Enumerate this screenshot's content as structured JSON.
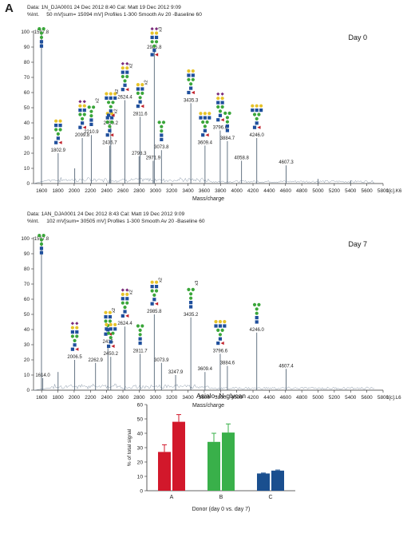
{
  "panel_label": "A",
  "spectra": [
    {
      "id": "day0",
      "header_line1": "Data: 1N_DJA0001 24 Dec 2012 8:40 Cal: Matt 19 Dec 2012 9:09",
      "header_line2_prefix": "%Int.",
      "header_line2_rest": "50 mV[sum= 15094 mV]  Profiles 1-300  Smooth Av 20 -Baseline 60",
      "day_label": "Day 0",
      "corner_label": "1[c].K6",
      "xlabel": "Mass/charge",
      "xlim": [
        1500,
        5800
      ],
      "ylim": [
        0,
        100
      ],
      "peaks": [
        {
          "mz": 1597.8,
          "label": "1597.8",
          "int": 98
        },
        {
          "mz": 1802.9,
          "label": "1802.9",
          "int": 20
        },
        {
          "mz": 2006.8,
          "label": "",
          "int": 10
        },
        {
          "mz": 2099.8,
          "label": "2099.8",
          "int": 30
        },
        {
          "mz": 2210.9,
          "label": "2210.9",
          "int": 32
        },
        {
          "mz": 2436.7,
          "label": "2436.7",
          "int": 25
        },
        {
          "mz": 2450.2,
          "label": "2450.2",
          "int": 38
        },
        {
          "mz": 2624.4,
          "label": "2624.4",
          "int": 55
        },
        {
          "mz": 2798.3,
          "label": "2798.3",
          "int": 18
        },
        {
          "mz": 2811.6,
          "label": "2811.6",
          "int": 44
        },
        {
          "mz": 2971.9,
          "label": "2971.9",
          "int": 15
        },
        {
          "mz": 2985.8,
          "label": "2985.8",
          "int": 88
        },
        {
          "mz": 3073.8,
          "label": "3073.8",
          "int": 22
        },
        {
          "mz": 3435.3,
          "label": "3435.3",
          "int": 53
        },
        {
          "mz": 3609.4,
          "label": "3609.4",
          "int": 25
        },
        {
          "mz": 3796.6,
          "label": "3796.6",
          "int": 35
        },
        {
          "mz": 3884.7,
          "label": "3884.7",
          "int": 28
        },
        {
          "mz": 4058.8,
          "label": "4058.8",
          "int": 15
        },
        {
          "mz": 4246.0,
          "label": "4246.0",
          "int": 30
        },
        {
          "mz": 4607.3,
          "label": "4607.3",
          "int": 12
        },
        {
          "mz": 5000,
          "label": "",
          "int": 3
        },
        {
          "mz": 5400,
          "label": "",
          "int": 2
        }
      ],
      "annotations": [
        "x2",
        "x2",
        "x2",
        "x2",
        "x2",
        "x3"
      ]
    },
    {
      "id": "day7",
      "header_line1": "Data: 1AN_DJA0001 24 Dec 2012 8:43 Cal: Matt 19 Dec 2012 9:09",
      "header_line2_prefix": "%Int.",
      "header_line2_rest": "102 mV[sum= 30505 mV]  Profiles 1-300  Smooth Av 20 -Baseline 60",
      "day_label": "Day 7",
      "corner_label": "1[c].L6",
      "xlabel": "Mass/charge",
      "xlim": [
        1500,
        5800
      ],
      "ylim": [
        0,
        100
      ],
      "peaks": [
        {
          "mz": 1597.8,
          "label": "1597.8",
          "int": 98
        },
        {
          "mz": 1614.0,
          "label": "1614.0",
          "int": 8
        },
        {
          "mz": 1802.0,
          "label": "",
          "int": 12
        },
        {
          "mz": 2006.5,
          "label": "2006.5",
          "int": 20
        },
        {
          "mz": 2262.9,
          "label": "2262.9",
          "int": 18
        },
        {
          "mz": 2415.0,
          "label": "2415",
          "int": 30
        },
        {
          "mz": 2450.2,
          "label": "2450.2",
          "int": 22
        },
        {
          "mz": 2624.4,
          "label": "2624.4",
          "int": 42
        },
        {
          "mz": 2811.7,
          "label": "2811.7",
          "int": 24
        },
        {
          "mz": 2985.8,
          "label": "2985.8",
          "int": 50
        },
        {
          "mz": 3073.9,
          "label": "3073.9",
          "int": 18
        },
        {
          "mz": 3247.9,
          "label": "3247.9",
          "int": 10
        },
        {
          "mz": 3435.2,
          "label": "3435.2",
          "int": 48
        },
        {
          "mz": 3609.4,
          "label": "3609.4",
          "int": 12
        },
        {
          "mz": 3796.6,
          "label": "3796.6",
          "int": 24
        },
        {
          "mz": 3884.6,
          "label": "3884.6",
          "int": 16
        },
        {
          "mz": 4246.0,
          "label": "4246.0",
          "int": 38
        },
        {
          "mz": 4607.4,
          "label": "4607.4",
          "int": 14
        }
      ],
      "annotations": [
        "x2",
        "x2",
        "x2",
        "x3"
      ]
    }
  ],
  "x_ticks": [
    "1600",
    "1800",
    "2000",
    "2200",
    "2400",
    "2600",
    "2800",
    "3000",
    "3200",
    "3400",
    "3600",
    "3800",
    "4000",
    "4200",
    "4400",
    "4600",
    "4800",
    "5000",
    "5200",
    "5400",
    "5600",
    "5800"
  ],
  "y_ticks": [
    "0",
    "10",
    "20",
    "30",
    "40",
    "50",
    "60",
    "70",
    "80",
    "90",
    "100"
  ],
  "glycan_colors": {
    "glcnac": "#1f4f9c",
    "mannose": "#3aa63a",
    "galactose": "#e6c229",
    "fucose": "#c0202a",
    "sialic": "#7a2a7a"
  },
  "chart_data": {
    "type": "bar",
    "title": "Asialo- N-glycan",
    "xlabel": "Donor (day 0 vs. day 7)",
    "ylabel": "% of total signal",
    "ylim": [
      0,
      60
    ],
    "y_ticks": [
      "0",
      "10",
      "20",
      "30",
      "40",
      "50",
      "60"
    ],
    "categories": [
      "A",
      "B",
      "C"
    ],
    "series": [
      {
        "values": [
          27,
          34,
          12
        ],
        "errors": [
          5,
          6,
          0.3
        ]
      },
      {
        "values": [
          48,
          40.5,
          14
        ],
        "errors": [
          5,
          6,
          0.4
        ]
      }
    ],
    "colors": {
      "A": "#d2182b",
      "B": "#39b04a",
      "C": "#1a4f8f"
    }
  }
}
